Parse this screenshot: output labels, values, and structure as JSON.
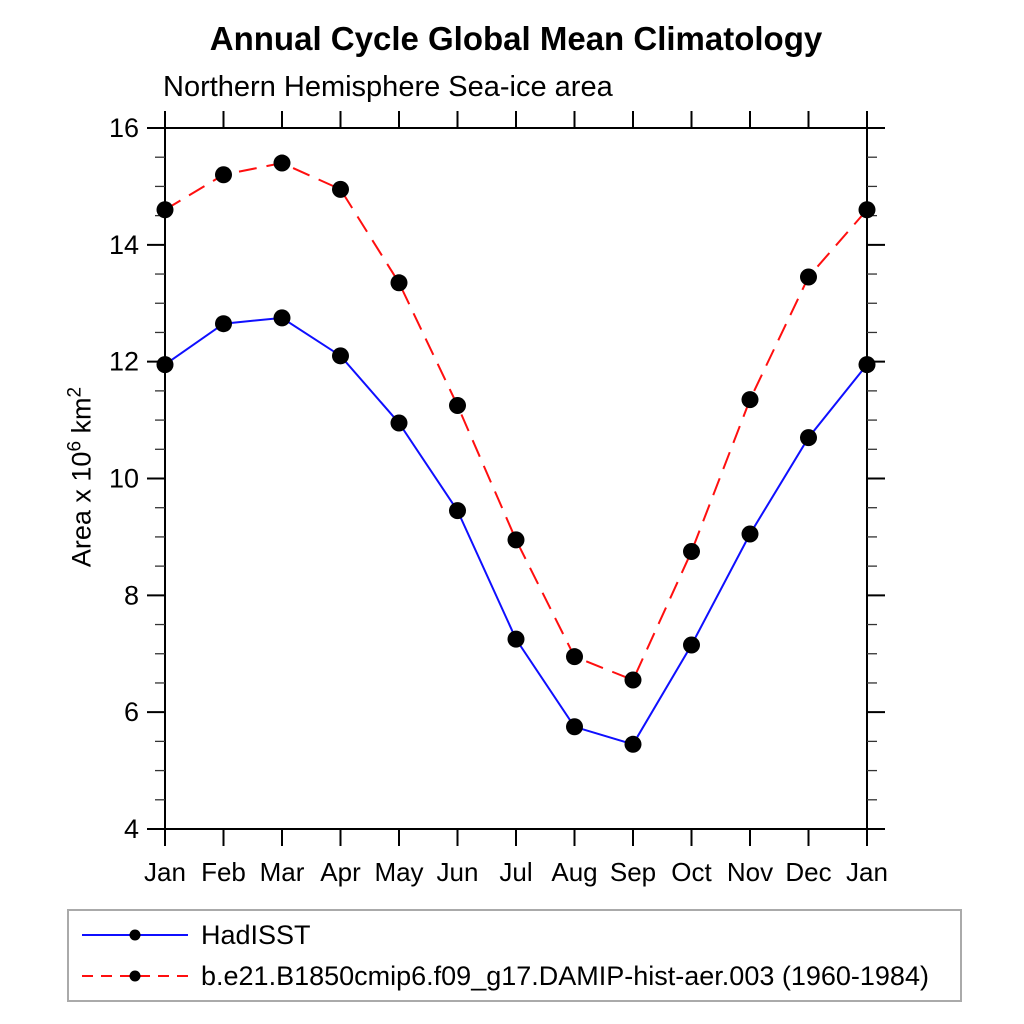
{
  "page": {
    "background": "#ffffff"
  },
  "header": {
    "title": "Annual Cycle Global Mean Climatology",
    "subtitle": "Northern Hemisphere Sea-ice area"
  },
  "y_axis_label": {
    "prefix": "Area x 10",
    "superscript_1": "6",
    "middle": " km",
    "superscript_2": "2"
  },
  "chart_data": {
    "type": "line",
    "title": "Annual Cycle Global Mean Climatology",
    "subtitle": "Northern Hemisphere Sea-ice area",
    "categories": [
      "Jan",
      "Feb",
      "Mar",
      "Apr",
      "May",
      "Jun",
      "Jul",
      "Aug",
      "Sep",
      "Oct",
      "Nov",
      "Dec",
      "Jan"
    ],
    "ylabel": "Area x 10^6 km^2",
    "ylim": [
      4,
      16
    ],
    "ytick_major": [
      4,
      6,
      8,
      10,
      12,
      14,
      16
    ],
    "ytick_minor_step": 0.5,
    "grid": false,
    "legend_position": "bottom-left box",
    "series": [
      {
        "name": "HadISST",
        "line_style": "solid",
        "color": "#0f0fff",
        "marker": "filled-circle",
        "marker_color": "#000000",
        "values": [
          11.95,
          12.65,
          12.75,
          12.1,
          10.95,
          9.45,
          7.25,
          5.75,
          5.45,
          7.15,
          9.05,
          10.7,
          11.95
        ]
      },
      {
        "name": "b.e21.B1850cmip6.f09_g17.DAMIP-hist-aer.003 (1960-1984)",
        "line_style": "dashed",
        "color": "#ff0f0f",
        "marker": "filled-circle",
        "marker_color": "#000000",
        "values": [
          14.6,
          15.2,
          15.4,
          14.95,
          13.35,
          11.25,
          8.95,
          6.95,
          6.55,
          8.75,
          11.35,
          13.45,
          14.6
        ]
      }
    ]
  },
  "legend": {
    "border_color": "#aaaaaa"
  }
}
